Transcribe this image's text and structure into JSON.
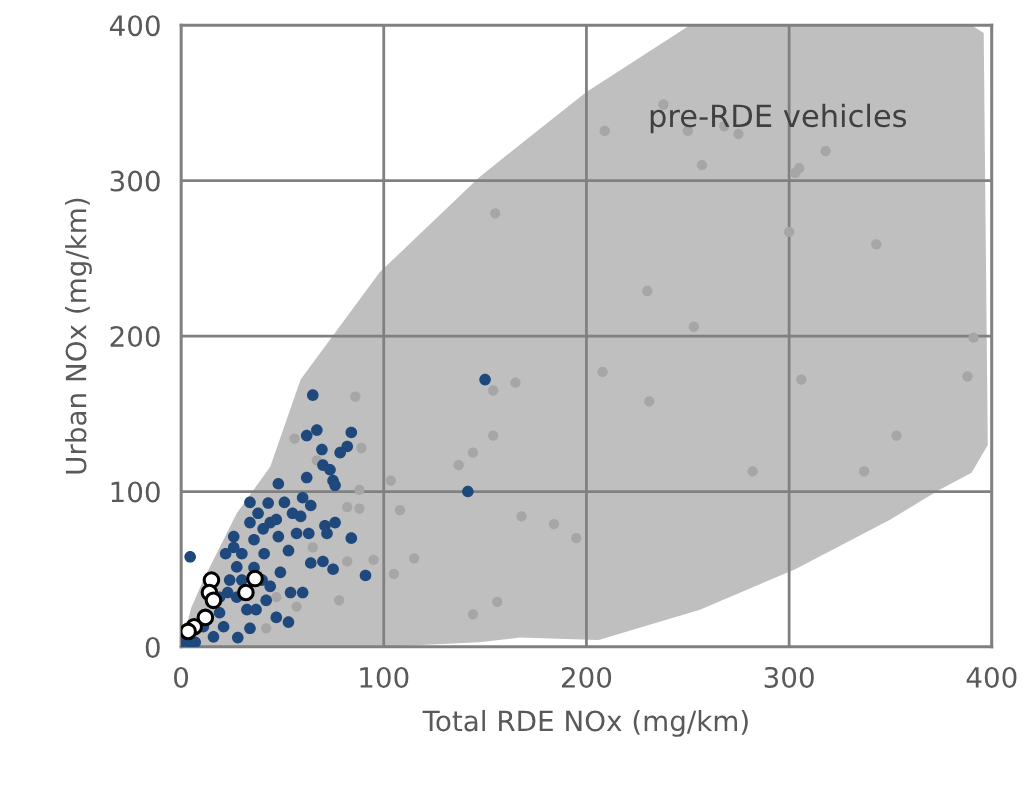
{
  "chart_data": {
    "type": "scatter",
    "xlabel": "Total RDE NOx (mg/km)",
    "ylabel": "Urban NOx (mg/km)",
    "xlim": [
      0,
      400
    ],
    "ylim": [
      0,
      400
    ],
    "xticks": [
      0,
      100,
      200,
      300,
      400
    ],
    "yticks": [
      0,
      100,
      200,
      300,
      400
    ],
    "grid": true,
    "series": [
      {
        "type": "area",
        "name": "pre-RDE vehicles",
        "color": "#bfbfbf",
        "x": [
          0,
          5,
          11,
          27.5,
          44,
          59,
          98,
          147,
          167,
          200,
          251,
          300,
          350,
          390,
          396,
          398,
          390,
          374,
          350,
          303,
          256,
          206,
          167,
          147,
          98,
          0
        ],
        "values": [
          0,
          25,
          43,
          86,
          116,
          172,
          241,
          302,
          323,
          357,
          400,
          400,
          400,
          400,
          395,
          130,
          112,
          101,
          82,
          50,
          24,
          4.5,
          6,
          3,
          0,
          0
        ]
      },
      {
        "color": "#a6a6a6",
        "x": [
          238,
          209,
          250,
          268,
          275,
          257,
          318,
          305,
          303,
          155,
          300,
          343,
          230,
          253,
          391,
          208,
          306,
          388,
          165,
          154,
          231,
          353,
          282,
          337,
          154,
          144,
          137,
          103.5,
          108,
          168,
          184,
          195,
          115,
          105,
          156,
          144,
          86,
          56,
          89,
          67,
          88,
          82,
          88,
          65,
          82,
          95,
          78,
          57,
          42,
          47
        ],
        "values": [
          349,
          332,
          332,
          335,
          330,
          310,
          319,
          308,
          305,
          279,
          267,
          259,
          229,
          206,
          199,
          177,
          172,
          174,
          170,
          165,
          158,
          136,
          113,
          113,
          136,
          125,
          117,
          107,
          88,
          84,
          79,
          70,
          57,
          47,
          29,
          21,
          161,
          134,
          128,
          120,
          101,
          90,
          89,
          64,
          55,
          56,
          30,
          26,
          12,
          32
        ]
      },
      {
        "color": "#1f497d",
        "x": [
          150,
          141.5,
          65,
          67,
          62,
          84,
          69.5,
          82,
          78.5,
          70,
          73.5,
          75,
          76,
          62,
          48,
          34,
          43,
          51,
          60,
          64,
          38,
          55,
          59,
          34,
          44,
          71,
          76,
          57,
          63,
          72,
          84,
          26,
          36,
          48,
          26,
          4.5,
          41,
          53,
          64,
          70,
          75,
          91,
          49,
          54,
          60,
          44,
          27.5,
          24,
          27.5,
          37,
          47,
          53,
          34,
          28,
          21,
          19,
          16,
          0,
          4.5,
          7,
          11,
          23,
          30,
          36,
          42,
          22,
          30,
          40,
          32.5,
          19,
          47,
          40.5
        ],
        "values": [
          172,
          100,
          162,
          139.5,
          136,
          138,
          127,
          129,
          125,
          117,
          114,
          107,
          104,
          109,
          105,
          93,
          92.6,
          93,
          96,
          91,
          86,
          86,
          84,
          80,
          80,
          78,
          80,
          73,
          73,
          73,
          70,
          71,
          69,
          71,
          64,
          58,
          60,
          62,
          54,
          55,
          50,
          46,
          48,
          35,
          35,
          39,
          51.5,
          43,
          32,
          24,
          19,
          16,
          12,
          6,
          13,
          22,
          6.5,
          3,
          2.5,
          3,
          13,
          35,
          43,
          51,
          30,
          60,
          60,
          43,
          24,
          32,
          82,
          76
        ]
      },
      {
        "color": "#ffffff",
        "x": [
          15,
          36.5,
          14,
          16,
          32,
          12,
          6.5,
          3.5
        ],
        "values": [
          43,
          44,
          35,
          30,
          35,
          19,
          13,
          10
        ]
      }
    ]
  }
}
